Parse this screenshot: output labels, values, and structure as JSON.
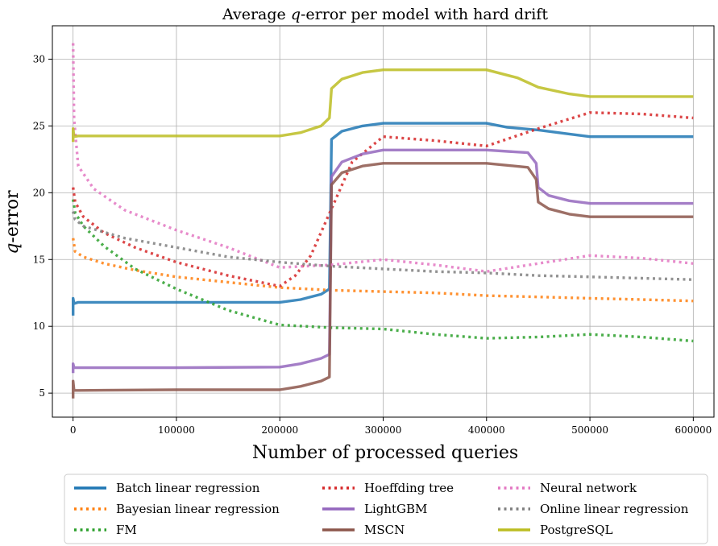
{
  "chart_data": {
    "type": "line",
    "title": "Average q-error per model with hard drift",
    "title_parts": {
      "before": "Average ",
      "italic": "q",
      "after": "-error per model with hard drift"
    },
    "xlabel": "Number of processed queries",
    "ylabel": "q-error",
    "ylabel_parts": {
      "italic": "q",
      "after": "-error"
    },
    "xlim": [
      -20000,
      620000
    ],
    "ylim": [
      3.2,
      32.5
    ],
    "xticks": [
      0,
      100000,
      200000,
      300000,
      400000,
      500000,
      600000
    ],
    "yticks": [
      5,
      10,
      15,
      20,
      25,
      30
    ],
    "grid": true,
    "legend_position": "bottom",
    "series": [
      {
        "name": "Batch linear regression",
        "color": "#1f77b4",
        "dash": "solid",
        "points": [
          [
            0,
            10.8
          ],
          [
            0,
            12.1
          ],
          [
            1000,
            11.7
          ],
          [
            5000,
            11.8
          ],
          [
            100000,
            11.8
          ],
          [
            200000,
            11.8
          ],
          [
            220000,
            12.0
          ],
          [
            240000,
            12.4
          ],
          [
            248000,
            12.8
          ],
          [
            250000,
            24.0
          ],
          [
            260000,
            24.6
          ],
          [
            280000,
            25.0
          ],
          [
            300000,
            25.2
          ],
          [
            400000,
            25.2
          ],
          [
            420000,
            24.9
          ],
          [
            450000,
            24.7
          ],
          [
            480000,
            24.4
          ],
          [
            500000,
            24.2
          ],
          [
            600000,
            24.2
          ]
        ]
      },
      {
        "name": "Bayesian linear regression",
        "color": "#ff7f0e",
        "dash": "dotted",
        "points": [
          [
            0,
            16.6
          ],
          [
            2000,
            15.6
          ],
          [
            10000,
            15.2
          ],
          [
            30000,
            14.7
          ],
          [
            60000,
            14.2
          ],
          [
            100000,
            13.7
          ],
          [
            150000,
            13.3
          ],
          [
            200000,
            12.9
          ],
          [
            250000,
            12.7
          ],
          [
            300000,
            12.6
          ],
          [
            350000,
            12.5
          ],
          [
            400000,
            12.3
          ],
          [
            450000,
            12.2
          ],
          [
            500000,
            12.1
          ],
          [
            550000,
            12.0
          ],
          [
            600000,
            11.9
          ]
        ]
      },
      {
        "name": "FM",
        "color": "#2ca02c",
        "dash": "dotted",
        "points": [
          [
            0,
            19.5
          ],
          [
            2000,
            18.5
          ],
          [
            10000,
            17.5
          ],
          [
            30000,
            16.0
          ],
          [
            60000,
            14.3
          ],
          [
            100000,
            12.8
          ],
          [
            150000,
            11.2
          ],
          [
            200000,
            10.1
          ],
          [
            250000,
            9.9
          ],
          [
            300000,
            9.8
          ],
          [
            350000,
            9.4
          ],
          [
            400000,
            9.1
          ],
          [
            450000,
            9.2
          ],
          [
            500000,
            9.4
          ],
          [
            550000,
            9.2
          ],
          [
            600000,
            8.9
          ]
        ]
      },
      {
        "name": "Hoeffding tree",
        "color": "#d62728",
        "dash": "dotted",
        "points": [
          [
            0,
            20.4
          ],
          [
            2000,
            19.3
          ],
          [
            10000,
            18.2
          ],
          [
            30000,
            17.0
          ],
          [
            60000,
            15.9
          ],
          [
            100000,
            14.8
          ],
          [
            150000,
            13.8
          ],
          [
            200000,
            13.0
          ],
          [
            215000,
            13.8
          ],
          [
            230000,
            15.3
          ],
          [
            250000,
            18.8
          ],
          [
            270000,
            22.3
          ],
          [
            300000,
            24.2
          ],
          [
            350000,
            23.9
          ],
          [
            400000,
            23.5
          ],
          [
            450000,
            24.8
          ],
          [
            500000,
            26.0
          ],
          [
            550000,
            25.9
          ],
          [
            600000,
            25.6
          ]
        ]
      },
      {
        "name": "LightGBM",
        "color": "#9467bd",
        "dash": "solid",
        "points": [
          [
            0,
            6.5
          ],
          [
            0,
            7.2
          ],
          [
            1000,
            6.9
          ],
          [
            5000,
            6.9
          ],
          [
            100000,
            6.9
          ],
          [
            200000,
            6.95
          ],
          [
            220000,
            7.2
          ],
          [
            240000,
            7.6
          ],
          [
            248000,
            7.9
          ],
          [
            250000,
            21.2
          ],
          [
            260000,
            22.3
          ],
          [
            280000,
            22.9
          ],
          [
            300000,
            23.2
          ],
          [
            400000,
            23.2
          ],
          [
            440000,
            23.0
          ],
          [
            448000,
            22.2
          ],
          [
            450000,
            20.4
          ],
          [
            460000,
            19.8
          ],
          [
            480000,
            19.4
          ],
          [
            500000,
            19.2
          ],
          [
            600000,
            19.2
          ]
        ]
      },
      {
        "name": "MSCN",
        "color": "#8c564b",
        "dash": "solid",
        "points": [
          [
            0,
            4.6
          ],
          [
            0,
            5.9
          ],
          [
            1000,
            5.2
          ],
          [
            5000,
            5.2
          ],
          [
            100000,
            5.25
          ],
          [
            200000,
            5.25
          ],
          [
            220000,
            5.5
          ],
          [
            240000,
            5.9
          ],
          [
            248000,
            6.2
          ],
          [
            250000,
            20.6
          ],
          [
            260000,
            21.5
          ],
          [
            280000,
            22.0
          ],
          [
            300000,
            22.2
          ],
          [
            400000,
            22.2
          ],
          [
            440000,
            21.9
          ],
          [
            448000,
            21.0
          ],
          [
            450000,
            19.3
          ],
          [
            460000,
            18.8
          ],
          [
            480000,
            18.4
          ],
          [
            500000,
            18.2
          ],
          [
            600000,
            18.2
          ]
        ]
      },
      {
        "name": "Neural network",
        "color": "#e377c2",
        "dash": "dotted",
        "points": [
          [
            0,
            31.2
          ],
          [
            1000,
            25.5
          ],
          [
            5000,
            22.0
          ],
          [
            20000,
            20.3
          ],
          [
            50000,
            18.7
          ],
          [
            100000,
            17.2
          ],
          [
            150000,
            15.9
          ],
          [
            200000,
            14.4
          ],
          [
            250000,
            14.6
          ],
          [
            300000,
            15.0
          ],
          [
            350000,
            14.6
          ],
          [
            400000,
            14.1
          ],
          [
            450000,
            14.7
          ],
          [
            500000,
            15.3
          ],
          [
            550000,
            15.1
          ],
          [
            600000,
            14.7
          ]
        ]
      },
      {
        "name": "Online linear regression",
        "color": "#7f7f7f",
        "dash": "dotted",
        "points": [
          [
            0,
            18.6
          ],
          [
            2000,
            18.0
          ],
          [
            10000,
            17.5
          ],
          [
            50000,
            16.6
          ],
          [
            100000,
            15.9
          ],
          [
            150000,
            15.2
          ],
          [
            200000,
            14.8
          ],
          [
            250000,
            14.5
          ],
          [
            300000,
            14.3
          ],
          [
            350000,
            14.1
          ],
          [
            400000,
            14.0
          ],
          [
            450000,
            13.8
          ],
          [
            500000,
            13.7
          ],
          [
            550000,
            13.6
          ],
          [
            600000,
            13.5
          ]
        ]
      },
      {
        "name": "PostgreSQL",
        "color": "#bcbd22",
        "dash": "solid",
        "points": [
          [
            0,
            23.8
          ],
          [
            0,
            24.8
          ],
          [
            1000,
            24.2
          ],
          [
            5000,
            24.25
          ],
          [
            100000,
            24.25
          ],
          [
            200000,
            24.25
          ],
          [
            220000,
            24.5
          ],
          [
            240000,
            25.0
          ],
          [
            248000,
            25.6
          ],
          [
            250000,
            27.8
          ],
          [
            260000,
            28.5
          ],
          [
            280000,
            29.0
          ],
          [
            300000,
            29.2
          ],
          [
            400000,
            29.2
          ],
          [
            430000,
            28.6
          ],
          [
            450000,
            27.9
          ],
          [
            480000,
            27.4
          ],
          [
            500000,
            27.2
          ],
          [
            600000,
            27.2
          ]
        ]
      }
    ]
  }
}
